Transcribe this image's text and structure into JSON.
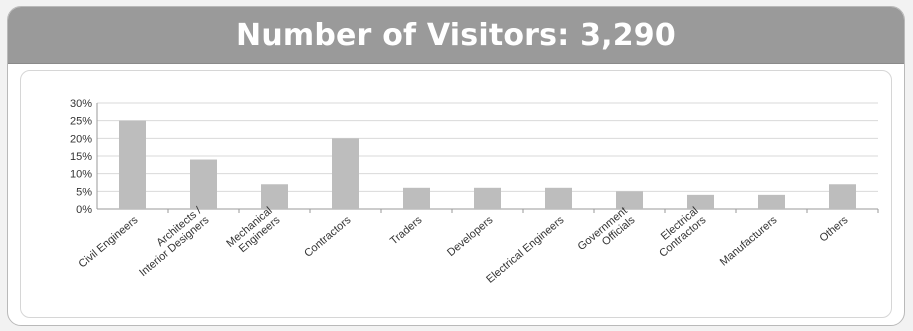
{
  "banner": {
    "title": "Number of Visitors: 3,290"
  },
  "colors": {
    "banner": "#9a9a9a",
    "bar": "#bdbdbd",
    "grid": "#d9d9d9"
  },
  "chart_data": {
    "type": "bar",
    "title": "",
    "xlabel": "",
    "ylabel": "",
    "ylim": [
      0,
      30
    ],
    "y_ticks": [
      "0%",
      "5%",
      "10%",
      "15%",
      "20%",
      "25%",
      "30%"
    ],
    "y_tick_values": [
      0,
      5,
      10,
      15,
      20,
      25,
      30
    ],
    "grid": true,
    "legend": "none",
    "categories": [
      [
        "Civil Engineers"
      ],
      [
        "Architects /",
        "Interior Designers"
      ],
      [
        "Mechanical",
        "Engineers"
      ],
      [
        "Contractors"
      ],
      [
        "Traders"
      ],
      [
        "Developers"
      ],
      [
        "Electrical Engineers"
      ],
      [
        "Government",
        "Officials"
      ],
      [
        "Electrical",
        "Contractors"
      ],
      [
        "Manufacturers"
      ],
      [
        "Others"
      ]
    ],
    "values": [
      25,
      14,
      7,
      20,
      6,
      6,
      6,
      5,
      4,
      4,
      7
    ]
  }
}
